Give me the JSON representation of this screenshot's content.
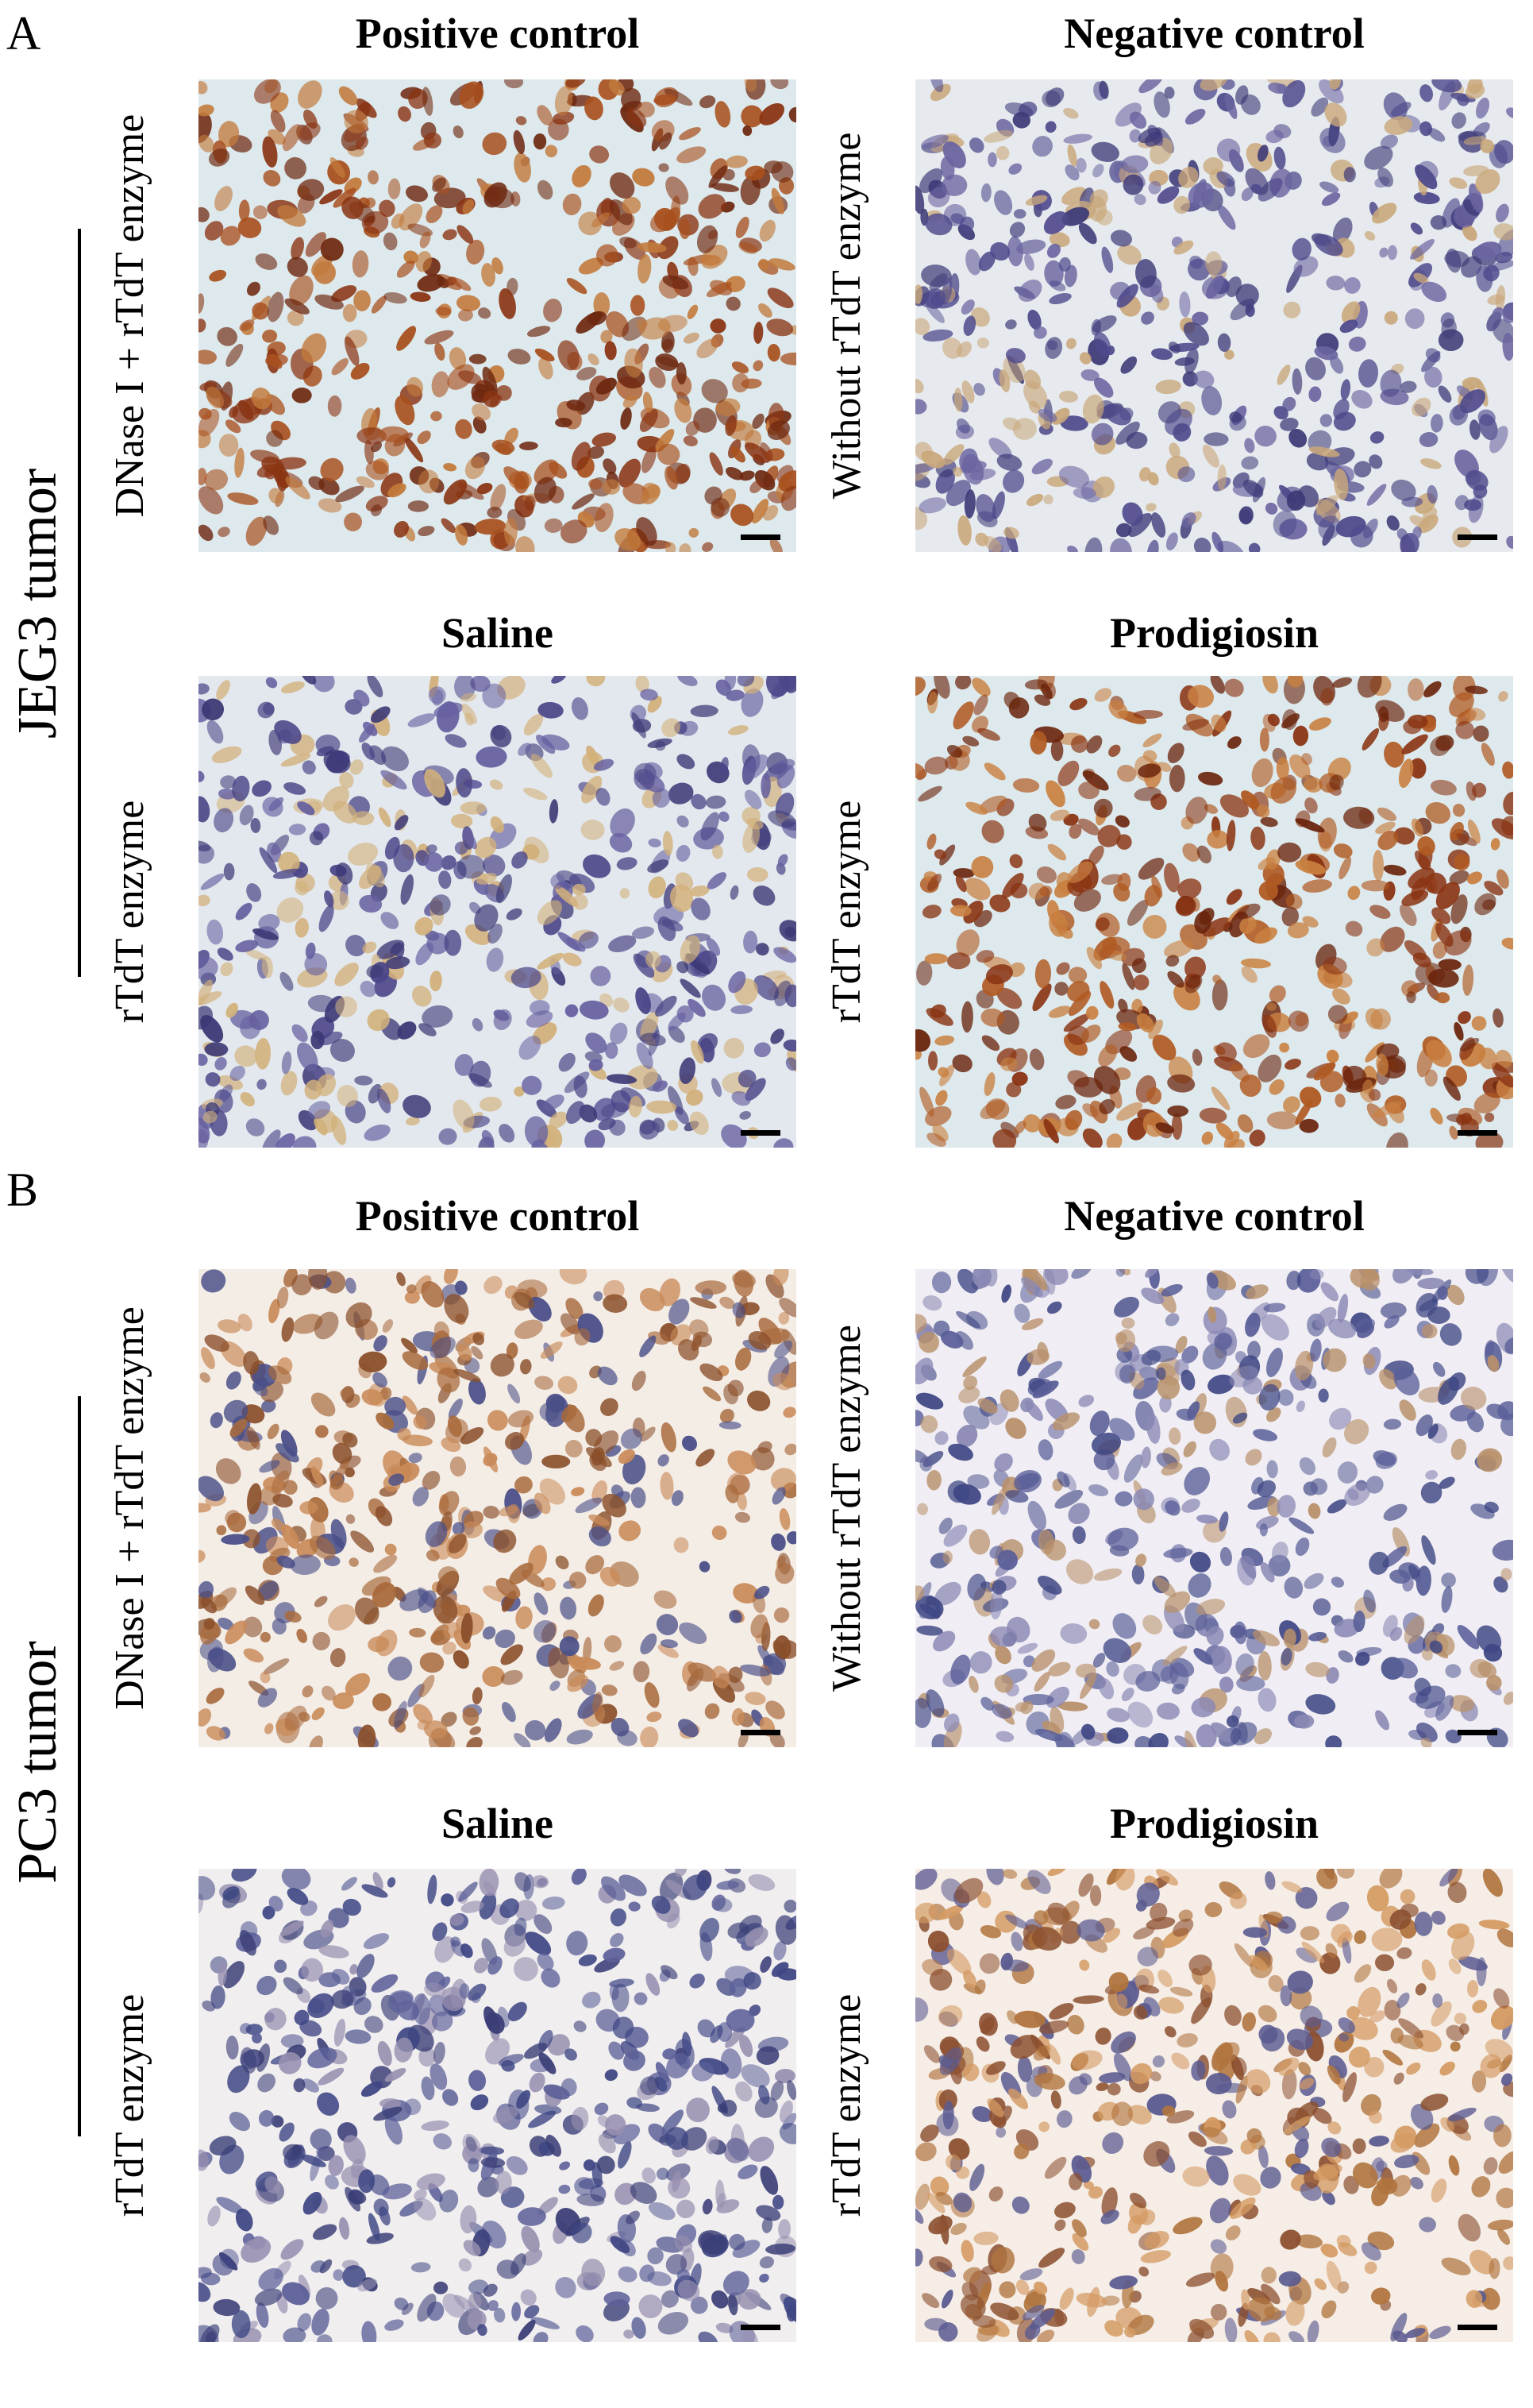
{
  "panels": [
    {
      "label": "A",
      "group": "JEG3 tumor",
      "images": [
        {
          "title": "Positive control",
          "side_label": "DNase I + rTdT enzyme"
        },
        {
          "title": "Negative control",
          "side_label": "Without rTdT enzyme"
        },
        {
          "title": "Saline",
          "side_label": "rTdT enzyme"
        },
        {
          "title": "Prodigiosin",
          "side_label": "rTdT enzyme"
        }
      ]
    },
    {
      "label": "B",
      "group": "PC3 tumor",
      "images": [
        {
          "title": "Positive control",
          "side_label": "DNase I + rTdT enzyme"
        },
        {
          "title": "Negative control",
          "side_label": "Without rTdT enzyme"
        },
        {
          "title": "Saline",
          "side_label": "rTdT enzyme"
        },
        {
          "title": "Prodigiosin",
          "side_label": "rTdT enzyme"
        }
      ]
    }
  ]
}
